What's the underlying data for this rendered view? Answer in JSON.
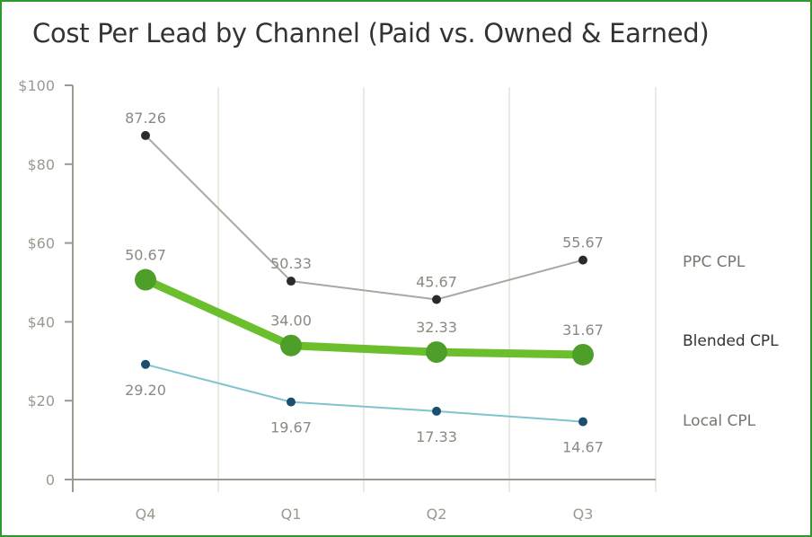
{
  "chart_data": {
    "type": "line",
    "title": "Cost Per Lead by Channel (Paid vs. Owned & Earned)",
    "categories": [
      "Q4",
      "Q1",
      "Q2",
      "Q3"
    ],
    "ylim": [
      0,
      100
    ],
    "yticks": [
      0,
      20,
      40,
      60,
      80,
      100
    ],
    "ytick_labels": [
      "0",
      "$20",
      "$40",
      "$60",
      "$80",
      "$100"
    ],
    "grid": "vertical",
    "legend": "right",
    "series": [
      {
        "name": "PPC CPL",
        "values": [
          87.26,
          50.33,
          45.67,
          55.67
        ],
        "labels": [
          "87.26",
          "50.33",
          "45.67",
          "55.67"
        ],
        "color": "#a8a8a0",
        "marker": "#2b2b2b",
        "label_pos": "above"
      },
      {
        "name": "Blended CPL",
        "values": [
          50.67,
          34.0,
          32.33,
          31.67
        ],
        "labels": [
          "50.67",
          "34.00",
          "32.33",
          "31.67"
        ],
        "color": "#6cbf2c",
        "marker": "#4e9e2a",
        "label_pos": "above"
      },
      {
        "name": "Local CPL",
        "values": [
          29.2,
          19.67,
          17.33,
          14.67
        ],
        "labels": [
          "29.20",
          "19.67",
          "17.33",
          "14.67"
        ],
        "color": "#7fc4cc",
        "marker": "#1b4f6e",
        "label_pos": "below"
      }
    ]
  }
}
